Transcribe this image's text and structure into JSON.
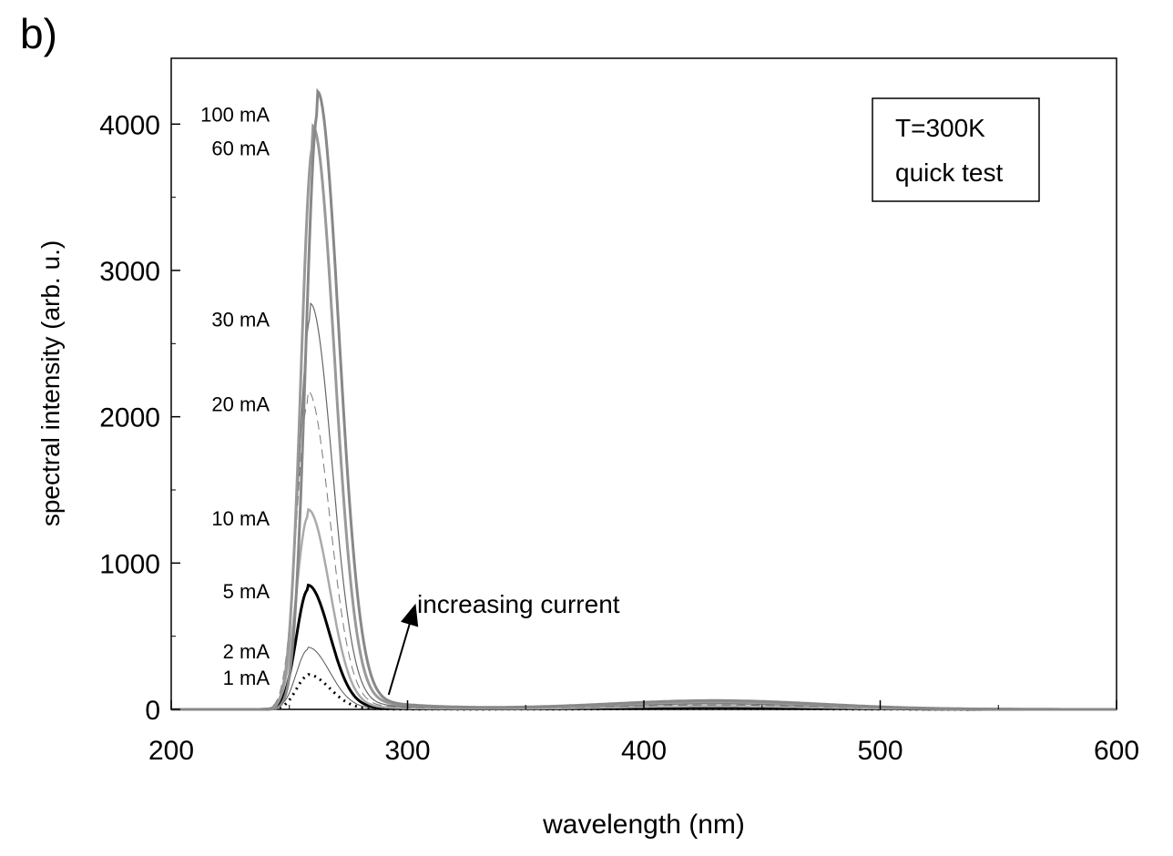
{
  "panel_label": "b)",
  "chart_data": {
    "type": "line",
    "xlabel": "wavelength (nm)",
    "ylabel": "spectral intensity (arb. u.)",
    "xlim": [
      200,
      600
    ],
    "ylim": [
      0,
      4450
    ],
    "x_ticks": [
      200,
      300,
      400,
      500,
      600
    ],
    "y_ticks": [
      0,
      1000,
      2000,
      3000,
      4000
    ],
    "grid": false,
    "legend": {
      "position": "top-right",
      "lines": [
        "T=300K",
        "quick test"
      ]
    },
    "annotation": {
      "text": "increasing current",
      "arrow_from": [
        292,
        100
      ],
      "arrow_to": [
        303,
        700
      ]
    },
    "series": [
      {
        "name": "1 mA",
        "peak_x": 258,
        "peak_y": 230,
        "tail": 5,
        "color": "#000000",
        "width": 3,
        "dash": "2,5"
      },
      {
        "name": "2 mA",
        "peak_x": 258,
        "peak_y": 410,
        "tail": 8,
        "color": "#555555",
        "width": 1,
        "dash": ""
      },
      {
        "name": "5 mA",
        "peak_x": 258,
        "peak_y": 820,
        "tail": 15,
        "color": "#000000",
        "width": 3,
        "dash": ""
      },
      {
        "name": "10 mA",
        "peak_x": 258,
        "peak_y": 1320,
        "tail": 22,
        "color": "#aaaaaa",
        "width": 2.5,
        "dash": ""
      },
      {
        "name": "20 mA",
        "peak_x": 258,
        "peak_y": 2100,
        "tail": 30,
        "color": "#777777",
        "width": 1,
        "dash": "10,6"
      },
      {
        "name": "30 mA",
        "peak_x": 259,
        "peak_y": 2680,
        "tail": 38,
        "color": "#666666",
        "width": 1.2,
        "dash": ""
      },
      {
        "name": "60 mA",
        "peak_x": 260,
        "peak_y": 3850,
        "tail": 50,
        "color": "#999999",
        "width": 3,
        "dash": ""
      },
      {
        "name": "100 mA",
        "peak_x": 262,
        "peak_y": 4080,
        "tail": 60,
        "color": "#888888",
        "width": 3,
        "dash": ""
      }
    ]
  }
}
